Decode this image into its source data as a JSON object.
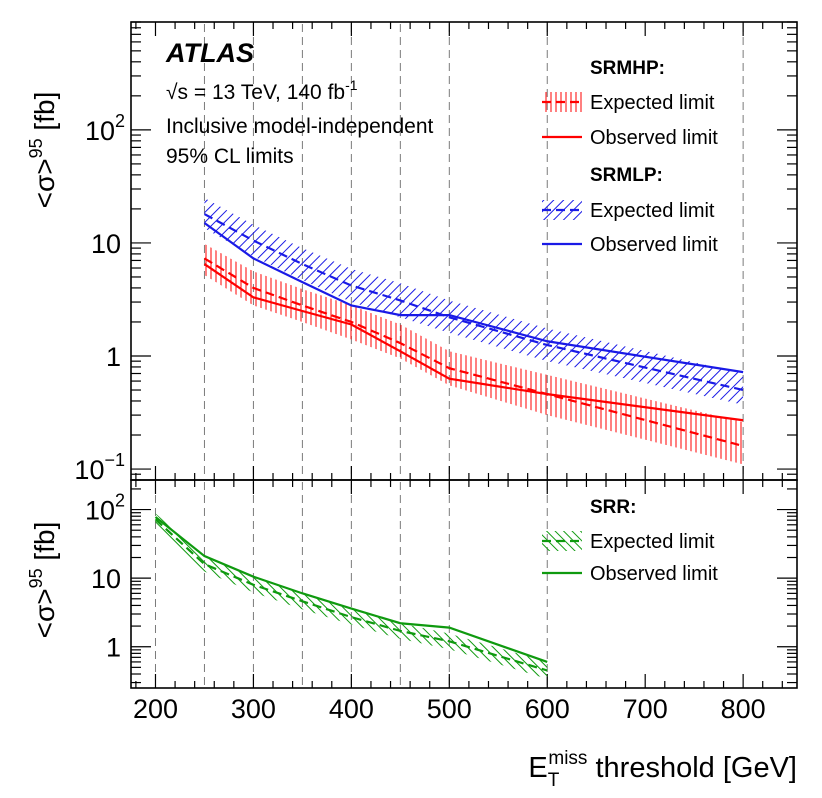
{
  "experiment": "ATLAS",
  "energy_prefix": "√s = 13 TeV, 140 fb",
  "energy_sup": "-1",
  "note_lines": [
    "Inclusive model-independent",
    "95% CL limits"
  ],
  "colors": {
    "SRMHP": "#ff0000",
    "SRMLP": "#1a1ae6",
    "SRR": "#0f9a0f"
  },
  "chart_data": [
    {
      "type": "line",
      "panel": "top",
      "title": "",
      "xlabel": "",
      "ylabel_main": "<σ>",
      "ylabel_sup": "95",
      "ylabel_unit": "[fb]",
      "yscale": "log",
      "xlim": [
        175,
        855
      ],
      "ylim": [
        0.08,
        900
      ],
      "x_gridlines": [
        250,
        300,
        350,
        400,
        450,
        500,
        600,
        800
      ],
      "y_tick_labels": [
        {
          "value": 0.1,
          "base": "10",
          "sup": "−1"
        },
        {
          "value": 1,
          "base": "1",
          "sup": ""
        },
        {
          "value": 10,
          "base": "10",
          "sup": ""
        },
        {
          "value": 100,
          "base": "10",
          "sup": "2"
        }
      ],
      "legend_groups": [
        {
          "key": "SRMHP",
          "heading": "SRMHP:",
          "expected_label": "Expected limit",
          "observed_label": "Observed limit"
        },
        {
          "key": "SRMLP",
          "heading": "SRMLP:",
          "expected_label": "Expected limit",
          "observed_label": "Observed limit"
        }
      ],
      "series": [
        {
          "name": "SRMHP expected",
          "group": "SRMHP",
          "kind": "expected",
          "x": [
            250,
            300,
            350,
            400,
            450,
            500,
            600,
            800
          ],
          "values": [
            7.3,
            4.0,
            2.8,
            2.0,
            1.3,
            0.78,
            0.46,
            0.16
          ],
          "band_low": [
            5.2,
            2.8,
            2.0,
            1.4,
            0.95,
            0.55,
            0.3,
            0.11
          ],
          "band_high": [
            9.8,
            5.6,
            3.9,
            2.8,
            1.9,
            1.1,
            0.68,
            0.26
          ]
        },
        {
          "name": "SRMHP observed",
          "group": "SRMHP",
          "kind": "observed",
          "x": [
            250,
            300,
            350,
            400,
            450,
            500,
            600,
            800
          ],
          "values": [
            6.5,
            3.3,
            2.5,
            1.9,
            1.1,
            0.63,
            0.46,
            0.27
          ]
        },
        {
          "name": "SRMLP expected",
          "group": "SRMLP",
          "kind": "expected",
          "x": [
            250,
            300,
            350,
            400,
            450,
            500,
            600,
            800
          ],
          "values": [
            18,
            10.5,
            6.5,
            4.2,
            3.1,
            2.2,
            1.25,
            0.5
          ],
          "band_low": [
            13.5,
            7.6,
            4.7,
            3.0,
            2.2,
            1.6,
            0.9,
            0.37
          ],
          "band_high": [
            25,
            14.5,
            9.0,
            5.9,
            4.4,
            3.1,
            1.75,
            0.7
          ]
        },
        {
          "name": "SRMLP observed",
          "group": "SRMLP",
          "kind": "observed",
          "x": [
            250,
            300,
            350,
            400,
            450,
            500,
            600,
            800
          ],
          "values": [
            15,
            7.3,
            4.5,
            2.8,
            2.3,
            2.3,
            1.35,
            0.72
          ]
        }
      ]
    },
    {
      "type": "line",
      "panel": "bottom",
      "title": "",
      "xlabel": "E",
      "xlabel_sub": "T",
      "xlabel_sup": "miss",
      "xlabel_rest": " threshold [GeV]",
      "ylabel_main": "<σ>",
      "ylabel_sup": "95",
      "ylabel_unit": "[fb]",
      "yscale": "log",
      "xlim": [
        175,
        855
      ],
      "ylim": [
        0.25,
        270
      ],
      "x_ticks": [
        200,
        300,
        400,
        500,
        600,
        700,
        800
      ],
      "x_gridlines": [
        200,
        250,
        300,
        350,
        400,
        450,
        500,
        600
      ],
      "y_tick_labels": [
        {
          "value": 1,
          "base": "1",
          "sup": ""
        },
        {
          "value": 10,
          "base": "10",
          "sup": ""
        },
        {
          "value": 100,
          "base": "10",
          "sup": "2"
        }
      ],
      "legend_groups": [
        {
          "key": "SRR",
          "heading": "SRR:",
          "expected_label": "Expected limit",
          "observed_label": "Observed limit"
        }
      ],
      "series": [
        {
          "name": "SRR expected",
          "group": "SRR",
          "kind": "expected",
          "x": [
            200,
            250,
            300,
            350,
            400,
            450,
            500,
            600
          ],
          "values": [
            72,
            16,
            8.0,
            4.6,
            2.7,
            1.7,
            1.2,
            0.45
          ],
          "band_low": [
            58,
            12.5,
            6.2,
            3.5,
            2.1,
            1.3,
            0.92,
            0.34
          ],
          "band_high": [
            88,
            20.5,
            10.5,
            6.0,
            3.5,
            2.2,
            1.55,
            0.6
          ]
        },
        {
          "name": "SRR observed",
          "group": "SRR",
          "kind": "observed",
          "x": [
            200,
            250,
            300,
            350,
            400,
            450,
            500,
            600
          ],
          "values": [
            78,
            21,
            10.5,
            6.0,
            3.6,
            2.2,
            1.9,
            0.6
          ]
        }
      ]
    }
  ]
}
